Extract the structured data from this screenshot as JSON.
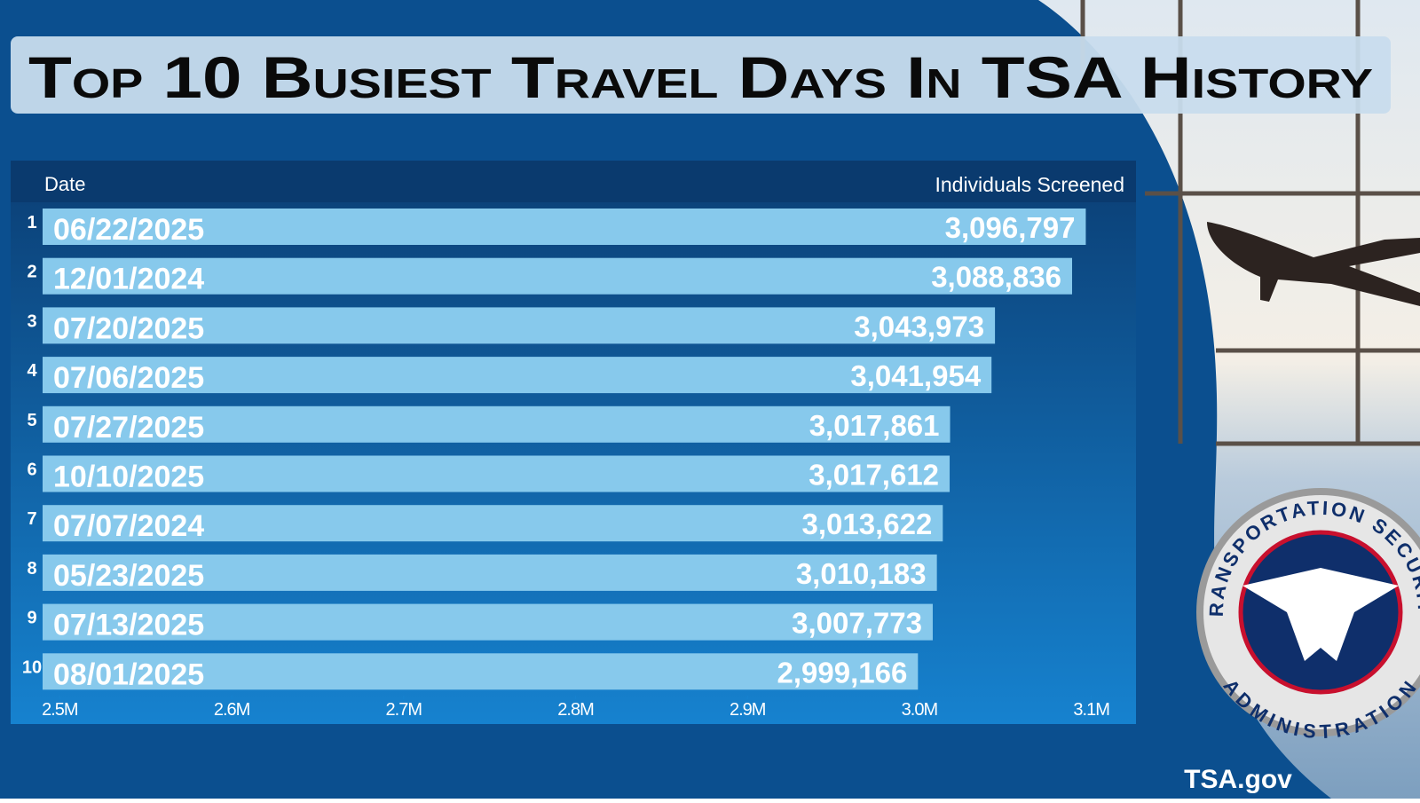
{
  "chart_data": {
    "type": "hbar",
    "title": "Top 10 Busiest Travel Days In TSA History",
    "category_label": "Date",
    "value_label": "Individuals Screened",
    "ranks": [
      1,
      2,
      3,
      4,
      5,
      6,
      7,
      8,
      9,
      10
    ],
    "categories": [
      "06/22/2025",
      "12/01/2024",
      "07/20/2025",
      "07/06/2025",
      "07/27/2025",
      "10/10/2025",
      "07/07/2024",
      "05/23/2025",
      "07/13/2025",
      "08/01/2025"
    ],
    "values": [
      3096797,
      3088836,
      3043973,
      3041954,
      3017861,
      3017612,
      3013622,
      3010183,
      3007773,
      2999166
    ],
    "value_labels": [
      "3,096,797",
      "3,088,836",
      "3,043,973",
      "3,041,954",
      "3,017,861",
      "3,017,612",
      "3,013,622",
      "3,010,183",
      "3,007,773",
      "2,999,166"
    ],
    "color": "#87c9ec",
    "xlim": [
      2490000,
      3110000
    ],
    "xticks": [
      {
        "value": 2500000,
        "label": "2.5M"
      },
      {
        "value": 2600000,
        "label": "2.6M"
      },
      {
        "value": 2700000,
        "label": "2.7M"
      },
      {
        "value": 2800000,
        "label": "2.8M"
      },
      {
        "value": 2900000,
        "label": "2.9M"
      },
      {
        "value": 3000000,
        "label": "3.0M"
      },
      {
        "value": 3100000,
        "label": "3.1M"
      }
    ]
  },
  "logo": {
    "top": "TRANSPORTATION SECURITY",
    "bottom": "ADMINISTRATION"
  },
  "footer": "TSA.gov"
}
